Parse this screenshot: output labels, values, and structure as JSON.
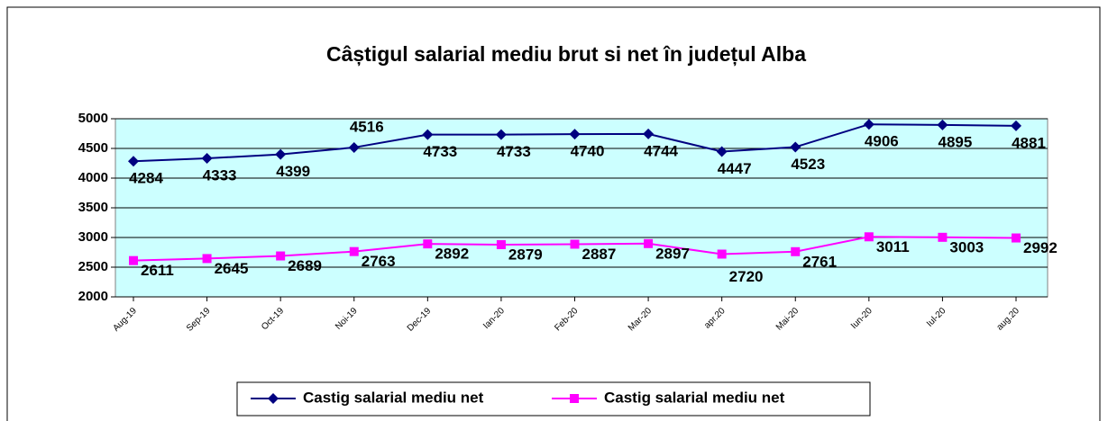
{
  "chart_data": {
    "type": "line",
    "title": "Câștigul salarial mediu brut si net în județul Alba",
    "categories": [
      "Aug-19",
      "Sep-19",
      "Oct-19",
      "Noi-19",
      "Dec-19",
      "Ian-20",
      "Feb-20",
      "Mar-20",
      "apr.20",
      "Mai-20",
      "Iun-20",
      "Iul-20",
      "aug.20"
    ],
    "series": [
      {
        "name": "Castig salarial mediu net",
        "color": "#000080",
        "marker": "diamond",
        "values": [
          4284,
          4333,
          4399,
          4516,
          4733,
          4733,
          4740,
          4744,
          4447,
          4523,
          4906,
          4895,
          4881
        ]
      },
      {
        "name": "Castig salarial mediu net",
        "color": "#ff00ff",
        "marker": "square",
        "values": [
          2611,
          2645,
          2689,
          2763,
          2892,
          2879,
          2887,
          2897,
          2720,
          2761,
          3011,
          3003,
          2992
        ]
      }
    ],
    "ylim": [
      2000,
      5000
    ],
    "yticks": [
      2000,
      2500,
      3000,
      3500,
      4000,
      4500,
      5000
    ],
    "grid": true,
    "legend": "bottom"
  }
}
